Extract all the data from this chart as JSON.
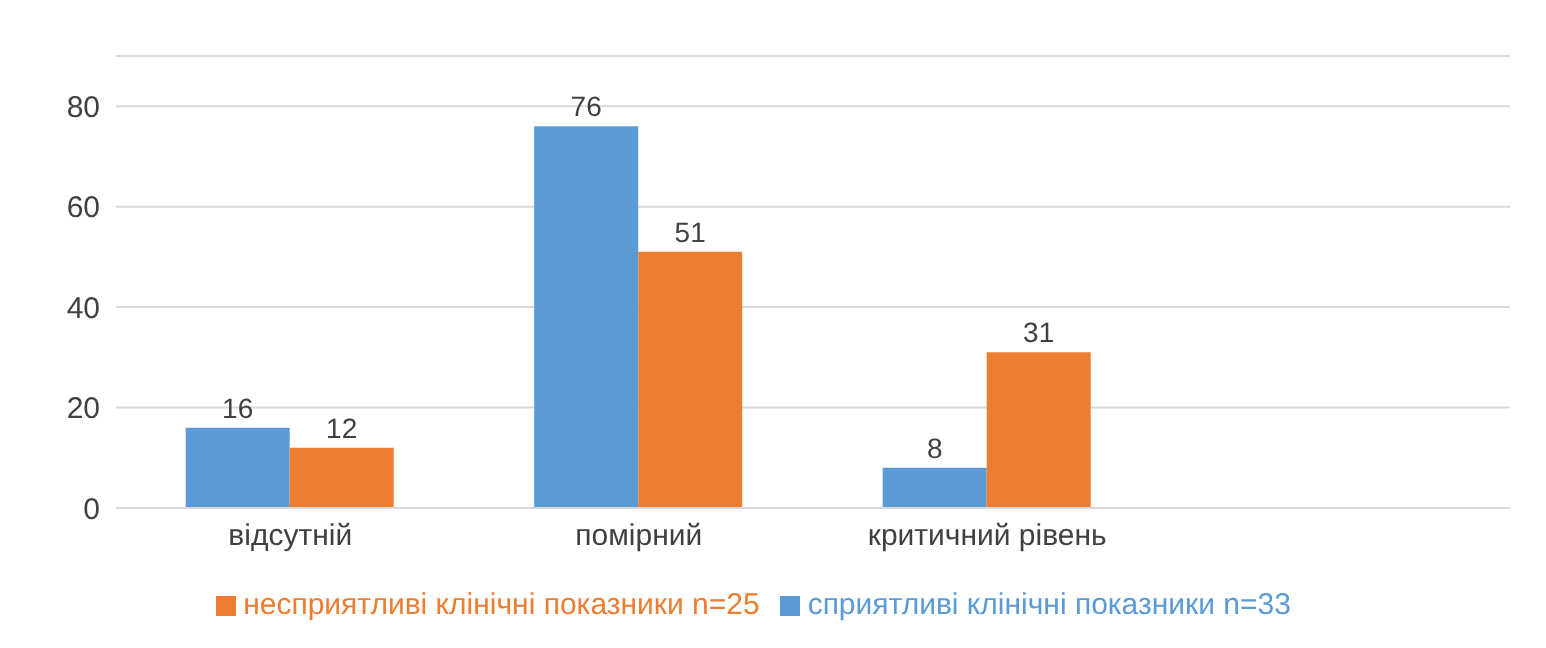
{
  "chart_data": {
    "type": "bar",
    "categories": [
      "відсутній",
      "помірний",
      "критичний рівень",
      null
    ],
    "series": [
      {
        "name": "сприятливі клінічні показники n=33",
        "color": "#5b9bd5",
        "values": [
          16,
          76,
          8,
          null
        ]
      },
      {
        "name": "несприятливі клінічні показники n=25",
        "color": "#ed7d31",
        "values": [
          12,
          51,
          31,
          null
        ]
      }
    ],
    "ylim": [
      0,
      90
    ],
    "yticks": [
      0,
      20,
      40,
      60,
      80
    ],
    "grid": "y",
    "data_labels": true,
    "legend": "bottom"
  }
}
